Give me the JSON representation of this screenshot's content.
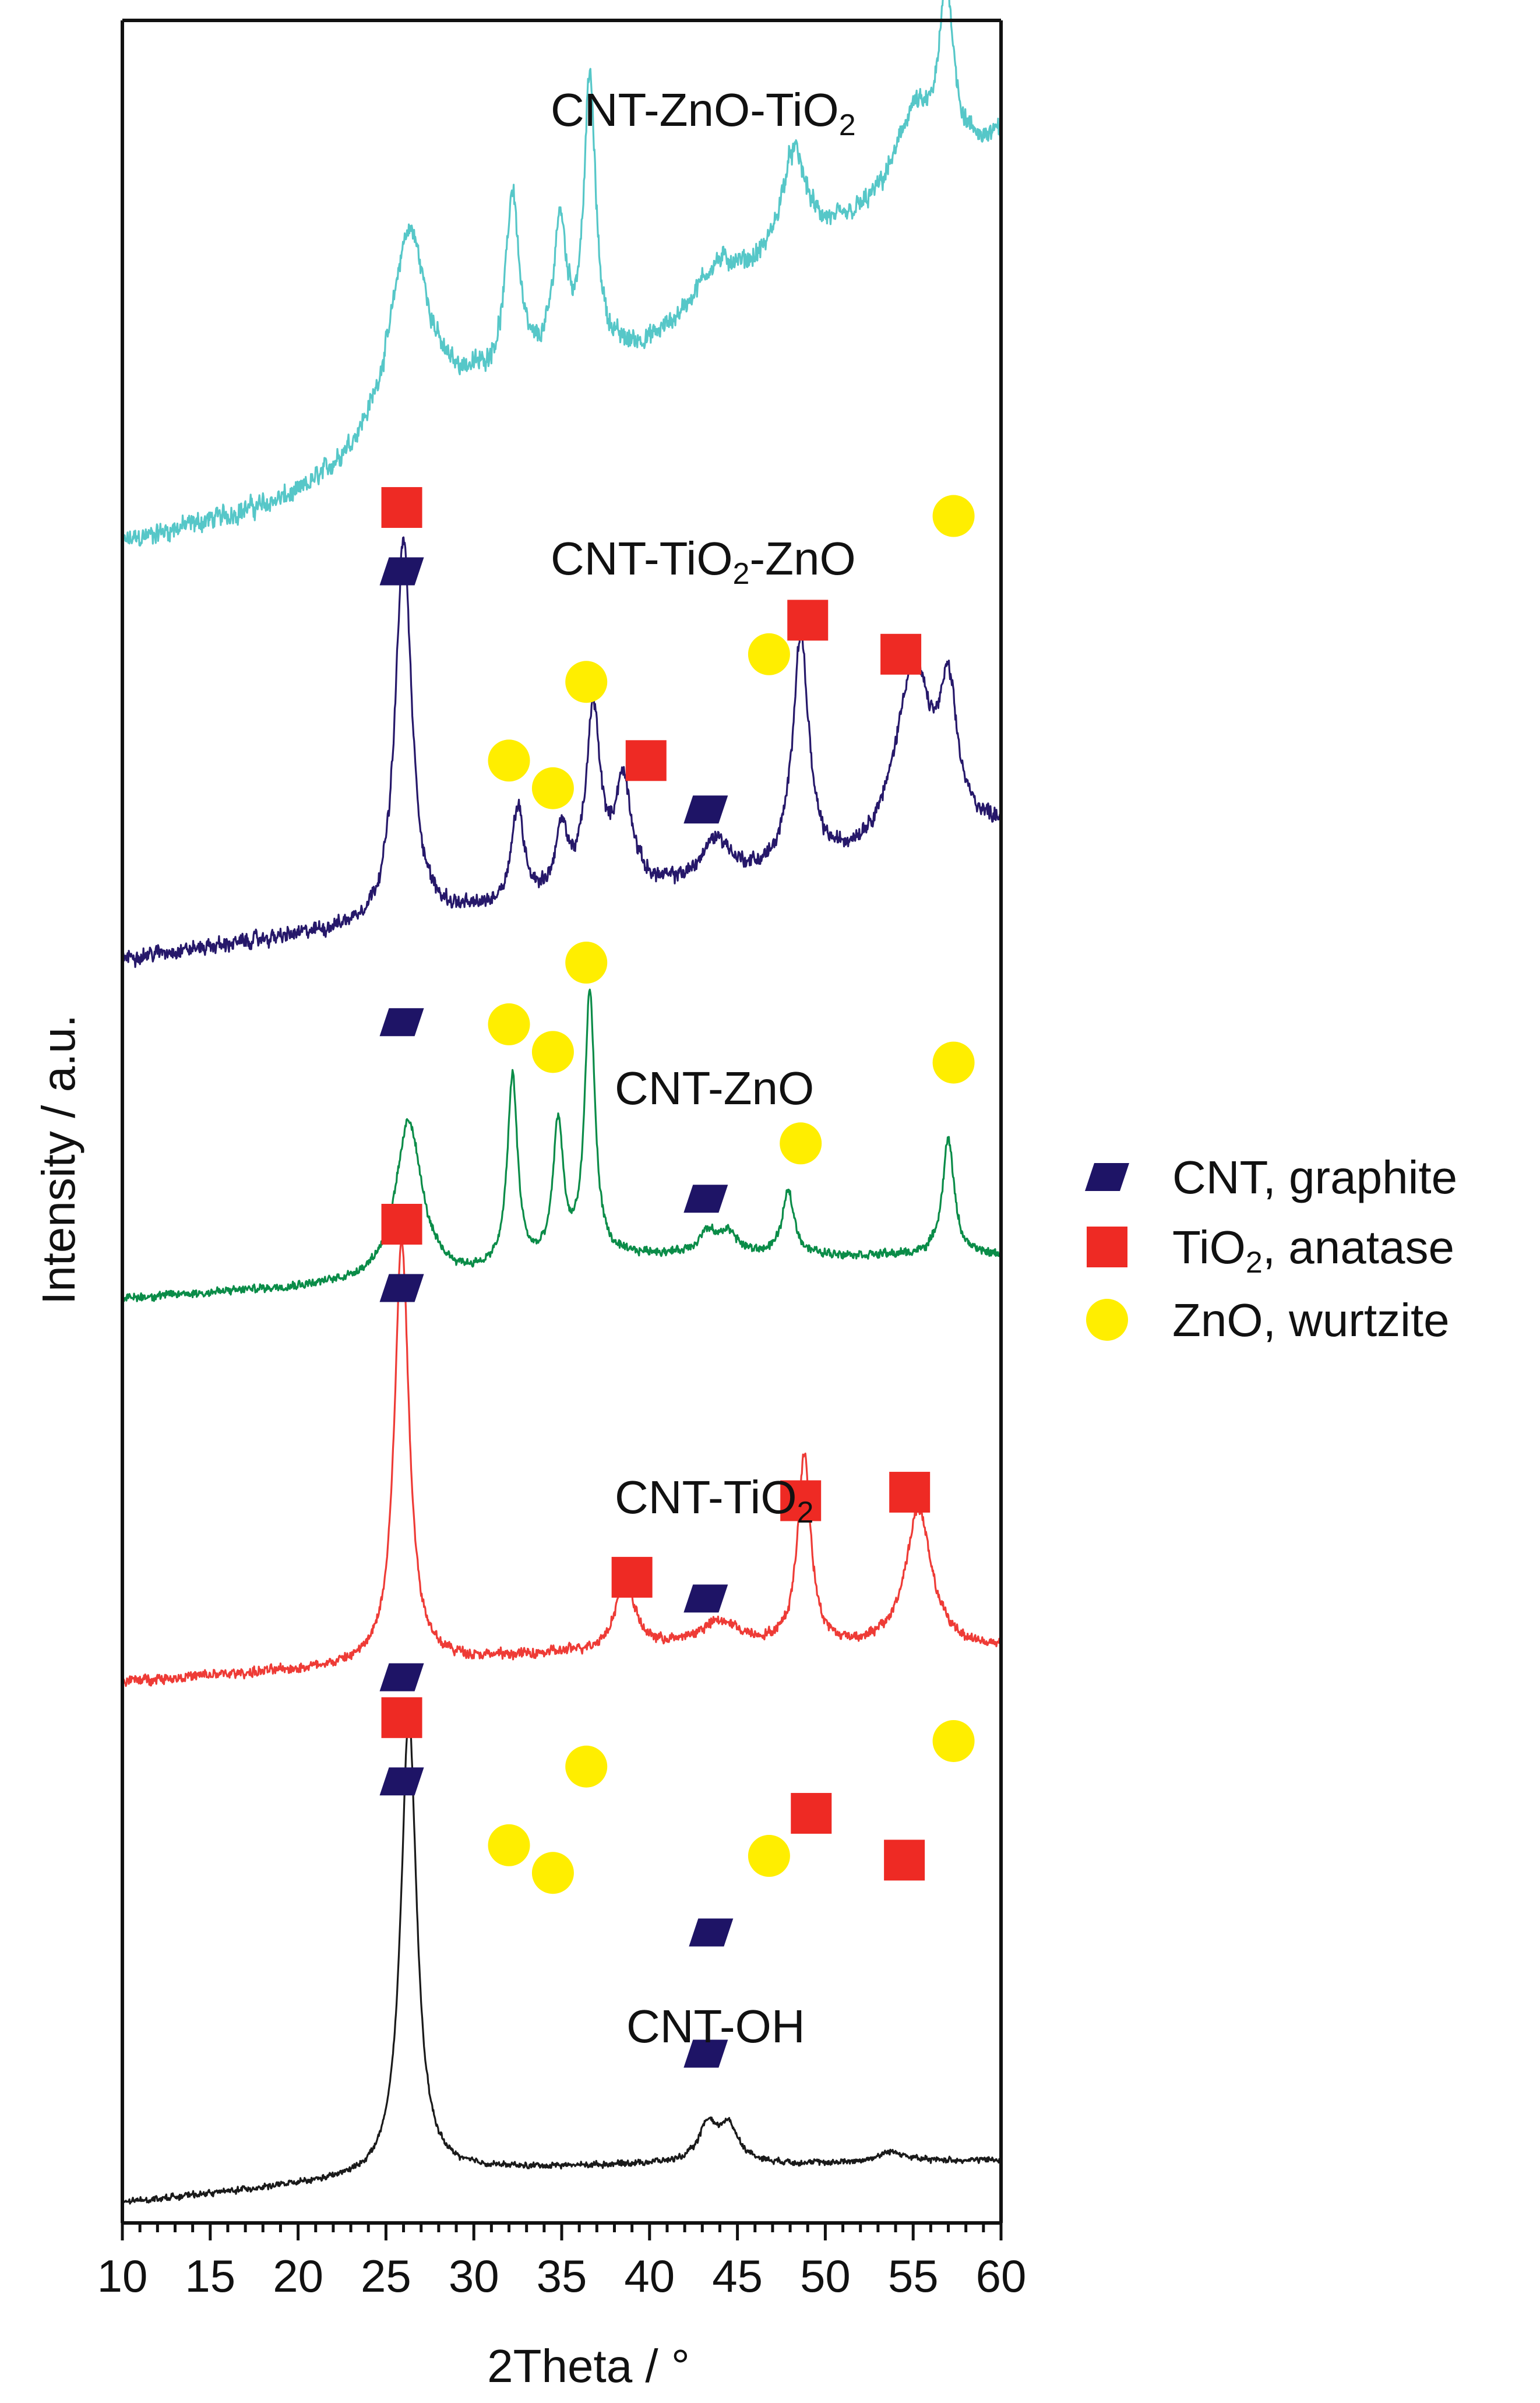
{
  "chart_data": {
    "type": "line",
    "title": "",
    "xlabel": "2Theta / °",
    "ylabel": "Intensity / a.u.",
    "xlim": [
      10,
      60
    ],
    "xticks": [
      10,
      15,
      20,
      25,
      30,
      35,
      40,
      45,
      50,
      55,
      60
    ],
    "y_units": "arbitrary (stacked, offset)",
    "grid": false,
    "legend_position": "right",
    "legend": [
      {
        "marker": "parallelogram",
        "label": "CNT, graphite",
        "color": "#1e1466"
      },
      {
        "marker": "square",
        "label": "TiO",
        "sub": "2",
        "tail": ", anatase",
        "color": "#ee2a24"
      },
      {
        "marker": "circle",
        "label": "ZnO, wurtzite",
        "color": "#ffee00"
      }
    ],
    "series": [
      {
        "name": "CNT-ZnO-TiO2",
        "label_parts": {
          "main": "CNT-ZnO-TiO",
          "sub": "2",
          "tail": ""
        },
        "color": "#56c7c8",
        "offset": 0.78,
        "noise": 0.0055,
        "noise_hf": 0.0035,
        "baseline": [
          [
            10,
            0.0
          ],
          [
            20,
            0.02
          ],
          [
            30,
            0.07
          ],
          [
            40,
            0.09
          ],
          [
            50,
            0.14
          ],
          [
            60,
            0.19
          ]
        ],
        "peaks": [
          {
            "x": 26.3,
            "h": 0.095,
            "w": 1.3
          },
          {
            "x": 32.2,
            "h": 0.085,
            "w": 0.45
          },
          {
            "x": 34.9,
            "h": 0.065,
            "w": 0.45
          },
          {
            "x": 36.6,
            "h": 0.13,
            "w": 0.4
          },
          {
            "x": 43.8,
            "h": 0.02,
            "w": 1.6
          },
          {
            "x": 48.2,
            "h": 0.05,
            "w": 0.9
          },
          {
            "x": 55.0,
            "h": 0.035,
            "w": 1.2
          },
          {
            "x": 56.9,
            "h": 0.08,
            "w": 0.5
          }
        ],
        "markers": [
          {
            "type": "square",
            "x": 25.9,
            "y": 0.228
          },
          {
            "type": "parallelogram",
            "x": 25.9,
            "y": 0.198
          },
          {
            "type": "circle",
            "x": 32.0,
            "y": 0.168
          },
          {
            "type": "circle",
            "x": 34.5,
            "y": 0.155
          },
          {
            "type": "circle",
            "x": 36.4,
            "y": 0.205
          },
          {
            "type": "parallelogram",
            "x": 43.5,
            "y": 0.127
          },
          {
            "type": "circle",
            "x": 46.8,
            "y": 0.163
          },
          {
            "type": "square",
            "x": 49.2,
            "y": 0.183
          },
          {
            "type": "square",
            "x": 54.5,
            "y": 0.161
          },
          {
            "type": "circle",
            "x": 57.3,
            "y": 0.217
          }
        ]
      },
      {
        "name": "CNT-TiO2-ZnO",
        "label_parts": {
          "main": "CNT-TiO",
          "sub": "2",
          "tail": "-ZnO"
        },
        "color": "#26186a",
        "offset": 0.585,
        "noise": 0.004,
        "noise_hf": 0.0025,
        "baseline": [
          [
            10,
            0.0
          ],
          [
            20,
            0.01
          ],
          [
            30,
            0.02
          ],
          [
            40,
            0.03
          ],
          [
            50,
            0.04
          ],
          [
            60,
            0.06
          ]
        ],
        "peaks": [
          {
            "x": 26.0,
            "h": 0.18,
            "w": 0.55
          },
          {
            "x": 32.5,
            "h": 0.045,
            "w": 0.45
          },
          {
            "x": 35.0,
            "h": 0.03,
            "w": 0.45
          },
          {
            "x": 36.8,
            "h": 0.085,
            "w": 0.5
          },
          {
            "x": 38.5,
            "h": 0.05,
            "w": 0.6
          },
          {
            "x": 43.8,
            "h": 0.02,
            "w": 1.0
          },
          {
            "x": 48.6,
            "h": 0.11,
            "w": 0.55
          },
          {
            "x": 55.0,
            "h": 0.085,
            "w": 1.2
          },
          {
            "x": 57.0,
            "h": 0.06,
            "w": 0.6
          }
        ],
        "markers": [
          {
            "type": "square",
            "x": 25.9,
            "y": 0.797
          },
          {
            "type": "parallelogram",
            "x": 25.9,
            "y": 0.767
          },
          {
            "type": "circle",
            "x": 32.0,
            "y": 0.678
          },
          {
            "type": "circle",
            "x": 34.5,
            "y": 0.665
          },
          {
            "type": "circle",
            "x": 36.4,
            "y": 0.715
          },
          {
            "type": "square",
            "x": 39.8,
            "y": 0.678
          },
          {
            "type": "parallelogram",
            "x": 43.2,
            "y": 0.655
          },
          {
            "type": "circle",
            "x": 46.8,
            "y": 0.728
          },
          {
            "type": "square",
            "x": 49.0,
            "y": 0.744
          },
          {
            "type": "square",
            "x": 54.3,
            "y": 0.728
          },
          {
            "type": "circle",
            "x": 57.3,
            "y": 0.793
          }
        ]
      },
      {
        "name": "CNT-ZnO",
        "label_parts": {
          "main": "CNT-ZnO",
          "sub": "",
          "tail": ""
        },
        "color": "#0a8c48",
        "offset": 0.425,
        "noise": 0.002,
        "noise_hf": 0.0015,
        "baseline": [
          [
            10,
            0.0
          ],
          [
            20,
            0.005
          ],
          [
            30,
            0.01
          ],
          [
            40,
            0.02
          ],
          [
            50,
            0.02
          ],
          [
            60,
            0.02
          ]
        ],
        "peaks": [
          {
            "x": 26.3,
            "h": 0.075,
            "w": 0.9
          },
          {
            "x": 32.2,
            "h": 0.09,
            "w": 0.35
          },
          {
            "x": 34.8,
            "h": 0.065,
            "w": 0.35
          },
          {
            "x": 36.6,
            "h": 0.125,
            "w": 0.35
          },
          {
            "x": 43.3,
            "h": 0.01,
            "w": 0.6
          },
          {
            "x": 44.5,
            "h": 0.01,
            "w": 0.6
          },
          {
            "x": 47.9,
            "h": 0.03,
            "w": 0.4
          },
          {
            "x": 57.0,
            "h": 0.055,
            "w": 0.4
          }
        ],
        "markers": [
          {
            "type": "parallelogram",
            "x": 25.9,
            "y": 0.555
          },
          {
            "type": "circle",
            "x": 32.0,
            "y": 0.554
          },
          {
            "type": "circle",
            "x": 34.5,
            "y": 0.541
          },
          {
            "type": "circle",
            "x": 36.4,
            "y": 0.583
          },
          {
            "type": "parallelogram",
            "x": 43.2,
            "y": 0.472
          },
          {
            "type": "circle",
            "x": 48.6,
            "y": 0.498
          },
          {
            "type": "circle",
            "x": 57.3,
            "y": 0.536
          }
        ]
      },
      {
        "name": "CNT-TiO2",
        "label_parts": {
          "main": "CNT-TiO",
          "sub": "2",
          "tail": ""
        },
        "color": "#ee3b36",
        "offset": 0.245,
        "noise": 0.0025,
        "noise_hf": 0.0018,
        "baseline": [
          [
            10,
            0.0
          ],
          [
            20,
            0.005
          ],
          [
            30,
            0.01
          ],
          [
            40,
            0.015
          ],
          [
            50,
            0.015
          ],
          [
            60,
            0.015
          ]
        ],
        "peaks": [
          {
            "x": 25.9,
            "h": 0.2,
            "w": 0.5
          },
          {
            "x": 38.6,
            "h": 0.035,
            "w": 0.6
          },
          {
            "x": 44.0,
            "h": 0.012,
            "w": 1.5
          },
          {
            "x": 48.8,
            "h": 0.09,
            "w": 0.45
          },
          {
            "x": 55.3,
            "h": 0.065,
            "w": 0.9
          }
        ],
        "markers": [
          {
            "type": "square",
            "x": 25.9,
            "y": 0.46
          },
          {
            "type": "parallelogram",
            "x": 25.9,
            "y": 0.43
          },
          {
            "type": "square",
            "x": 39.0,
            "y": 0.294
          },
          {
            "type": "parallelogram",
            "x": 43.2,
            "y": 0.284
          },
          {
            "type": "square",
            "x": 48.6,
            "y": 0.33
          },
          {
            "type": "square",
            "x": 54.8,
            "y": 0.334
          }
        ]
      },
      {
        "name": "CNT-OH",
        "label_parts": {
          "main": "CNT-OH",
          "sub": "",
          "tail": ""
        },
        "color": "#1a1a1a",
        "offset": 0.0,
        "noise": 0.0015,
        "noise_hf": 0.001,
        "baseline": [
          [
            10,
            0.0
          ],
          [
            20,
            0.008
          ],
          [
            30,
            0.015
          ],
          [
            40,
            0.018
          ],
          [
            50,
            0.018
          ],
          [
            60,
            0.02
          ]
        ],
        "peaks": [
          {
            "x": 26.3,
            "h": 0.215,
            "w": 0.55
          },
          {
            "x": 43.3,
            "h": 0.017,
            "w": 0.6
          },
          {
            "x": 44.5,
            "h": 0.017,
            "w": 0.7
          },
          {
            "x": 53.8,
            "h": 0.005,
            "w": 1.0
          }
        ],
        "markers": [
          {
            "type": "parallelogram",
            "x": 25.9,
            "y": 0.247
          },
          {
            "type": "parallelogram",
            "x": 43.2,
            "y": 0.07
          }
        ]
      }
    ]
  }
}
